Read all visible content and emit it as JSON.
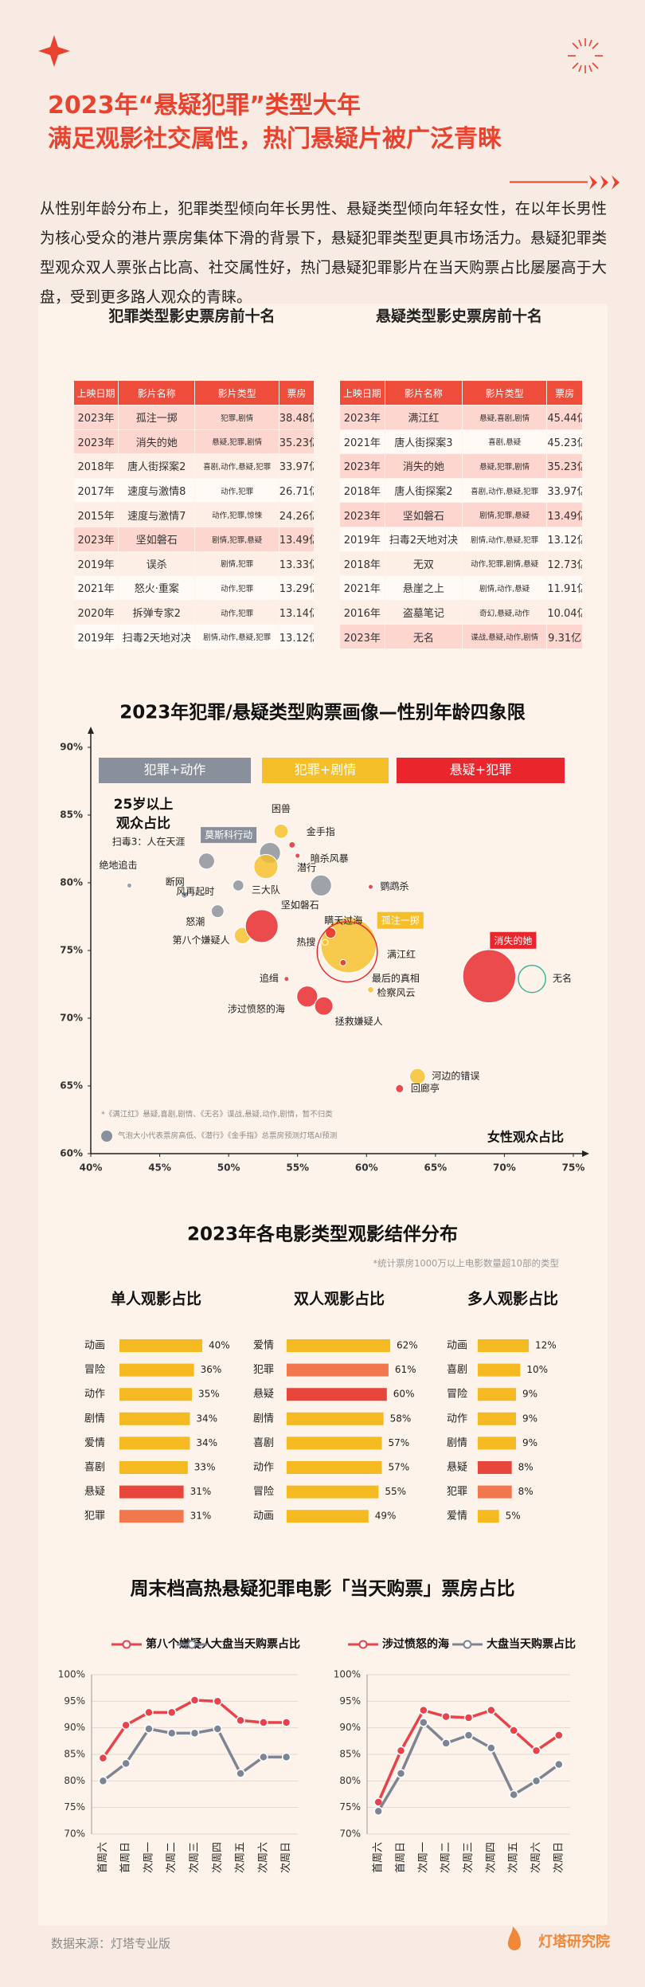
{
  "header": {
    "title_lines": [
      "2023年“悬疑犯罪”类型大年",
      "满足观影社交属性，热门悬疑片被广泛青睐"
    ]
  },
  "intro": "从性别年龄分布上，犯罪类型倾向年长男性、悬疑类型倾向年轻女性，在以年长男性为核心受众的港片票房集体下滑的背景下，悬疑犯罪类型更具市场活力。悬疑犯罪类型观众双人票张占比高、社交属性好，热门悬疑犯罪影片在当天购票占比屡屡高于大盘，受到更多路人观众的青睐。",
  "tables": [
    {
      "title": "犯罪类型影史票房前十名",
      "header_color": "#ef4d3c",
      "highlight_color": "#fcd6cf",
      "highlight_rows": [
        0,
        1,
        5
      ],
      "columns": [
        "上映日期",
        "影片名称",
        "影片类型",
        "票房"
      ],
      "rows": [
        [
          "2023年",
          "孤注一掷",
          "犯罪,剧情",
          "38.48亿"
        ],
        [
          "2023年",
          "消失的她",
          "悬疑,犯罪,剧情",
          "35.23亿"
        ],
        [
          "2018年",
          "唐人街探案2",
          "喜剧,动作,悬疑,犯罪",
          "33.97亿"
        ],
        [
          "2017年",
          "速度与激情8",
          "动作,犯罪",
          "26.71亿"
        ],
        [
          "2015年",
          "速度与激情7",
          "动作,犯罪,惊悚",
          "24.26亿"
        ],
        [
          "2023年",
          "坚如磐石",
          "剧情,犯罪,悬疑",
          "13.49亿"
        ],
        [
          "2019年",
          "误杀",
          "剧情,犯罪",
          "13.33亿"
        ],
        [
          "2021年",
          "怒火·重案",
          "动作,犯罪",
          "13.29亿"
        ],
        [
          "2020年",
          "拆弹专家2",
          "动作,犯罪",
          "13.14亿"
        ],
        [
          "2019年",
          "扫毒2天地对决",
          "剧情,动作,悬疑,犯罪",
          "13.12亿"
        ]
      ]
    },
    {
      "title": "悬疑类型影史票房前十名",
      "header_color": "#ef4d3c",
      "highlight_color": "#fcd6cf",
      "highlight_rows": [
        0,
        2,
        4,
        9
      ],
      "columns": [
        "上映日期",
        "影片名称",
        "影片类型",
        "票房"
      ],
      "rows": [
        [
          "2023年",
          "满江红",
          "悬疑,喜剧,剧情",
          "45.44亿"
        ],
        [
          "2021年",
          "唐人街探案3",
          "喜剧,悬疑",
          "45.23亿"
        ],
        [
          "2023年",
          "消失的她",
          "悬疑,犯罪,剧情",
          "35.23亿"
        ],
        [
          "2018年",
          "唐人街探案2",
          "喜剧,动作,悬疑,犯罪",
          "33.97亿"
        ],
        [
          "2023年",
          "坚如磐石",
          "剧情,犯罪,悬疑",
          "13.49亿"
        ],
        [
          "2019年",
          "扫毒2天地对决",
          "剧情,动作,悬疑,犯罪",
          "13.12亿"
        ],
        [
          "2018年",
          "无双",
          "动作,犯罪,剧情,悬疑",
          "12.73亿"
        ],
        [
          "2021年",
          "悬崖之上",
          "剧情,动作,悬疑",
          "11.91亿"
        ],
        [
          "2016年",
          "盗墓笔记",
          "奇幻,悬疑,动作",
          "10.04亿"
        ],
        [
          "2023年",
          "无名",
          "谍战,悬疑,动作,剧情",
          "9.31亿"
        ]
      ]
    }
  ],
  "chart_data": [
    {
      "type": "scatter",
      "title": "2023年犯罪/悬疑类型购票画像—性别年龄四象限",
      "x_label": "女性观众占比",
      "y_label": [
        "25岁以上",
        "观众占比"
      ],
      "xlim": [
        40,
        75
      ],
      "xticks": [
        {
          "value": 40,
          "label": "40%"
        },
        {
          "value": 45,
          "label": "45%"
        },
        {
          "value": 50,
          "label": "50%"
        },
        {
          "value": 55,
          "label": "55%"
        },
        {
          "value": 60,
          "label": "60%"
        },
        {
          "value": 65,
          "label": "65%"
        },
        {
          "value": 70,
          "label": "70%"
        },
        {
          "value": 75,
          "label": "75%"
        }
      ],
      "ylim": [
        60,
        90
      ],
      "yticks": [
        {
          "value": 60,
          "label": "60%"
        },
        {
          "value": 65,
          "label": "65%"
        },
        {
          "value": 70,
          "label": "70%"
        },
        {
          "value": 75,
          "label": "75%"
        },
        {
          "value": 80,
          "label": "80%"
        },
        {
          "value": 85,
          "label": "85%"
        },
        {
          "value": 90,
          "label": "90%"
        }
      ],
      "series": [
        {
          "name": "犯罪+动作",
          "color": "#8a909b",
          "boxed": [
            1
          ],
          "labels": [
            "扫毒3：人在天涯",
            "莫斯科行动",
            "绝地追击",
            "断网",
            "风再起时",
            "怒潮",
            "潜行"
          ],
          "x": [
            48.4,
            53.0,
            42.8,
            46.8,
            50.7,
            49.2,
            56.7
          ],
          "values": [
            81.6,
            82.2,
            79.8,
            79.1,
            79.8,
            77.9,
            79.8
          ],
          "sizes": [
            3.2,
            5.5,
            0.3,
            0.5,
            1.5,
            2.0,
            5.5
          ]
        },
        {
          "name": "犯罪+剧情",
          "color": "#f5bf2a",
          "boxed": [
            3
          ],
          "labels": [
            "困兽",
            "三大队",
            "第八个嫌疑人",
            "孤注一掷",
            "检察风云",
            "河边的错误",
            "热搜"
          ],
          "x": [
            53.8,
            52.7,
            51.0,
            58.7,
            60.3,
            63.7,
            57.0
          ],
          "values": [
            83.8,
            81.2,
            76.1,
            75.4,
            72.1,
            65.7,
            75.6
          ],
          "sizes": [
            2.5,
            7.3,
            3.3,
            38.48,
            0.5,
            3.1,
            0.4
          ]
        },
        {
          "name": "悬疑+犯罪",
          "color": "#e8262b",
          "boxed": [
            9
          ],
          "labels": [
            "坚如磐石",
            "金手指",
            "暗杀风暴",
            "鹦鹉杀",
            "瞒天过海",
            "最后的真相",
            "追缉",
            "涉过愤怒的海",
            "拯救嫌疑人",
            "消失的她",
            "回廊亭"
          ],
          "x": [
            52.4,
            54.6,
            55.0,
            60.3,
            57.4,
            58.3,
            54.2,
            55.7,
            56.9,
            68.9,
            62.4
          ],
          "values": [
            76.8,
            82.8,
            82.0,
            79.7,
            76.3,
            74.1,
            72.9,
            71.6,
            70.9,
            73.1,
            64.8
          ],
          "sizes": [
            13.49,
            0.5,
            0.3,
            0.2,
            1.4,
            0.5,
            0.2,
            5.5,
            4.2,
            35.23,
            0.8
          ]
        }
      ],
      "extra_points": {
        "labels": [
          "满江红",
          "无名"
        ],
        "x": [
          58.6,
          72.0
        ],
        "values": [
          74.9,
          72.9
        ],
        "sizes": [
          45.44,
          9.31
        ],
        "colors": [
          "#e8262b",
          "#3fb59b"
        ]
      },
      "notes": [
        "*《满江红》悬疑,喜剧,剧情、《无名》谍战,悬疑,动作,剧情，暂不归类",
        "气泡大小代表票房高低、《潜行》《金手指》总票房预测灯塔AI预测"
      ]
    },
    {
      "type": "bar",
      "title": "2023年各电影类型观影结伴分布",
      "note": "*统计票房1000万以上电影数量超10部的类型",
      "panels": [
        {
          "title": "单人观影占比",
          "categories": [
            "动画",
            "冒险",
            "动作",
            "剧情",
            "爱情",
            "喜剧",
            "悬疑",
            "犯罪"
          ],
          "values": [
            40,
            36,
            35,
            34,
            34,
            33,
            31,
            31
          ],
          "value_labels": [
            "40%",
            "36%",
            "35%",
            "34%",
            "34%",
            "33%",
            "31%",
            "31%"
          ],
          "colors": [
            "#f5b921",
            "#f5b921",
            "#f5b921",
            "#f5b921",
            "#f5b921",
            "#f5b921",
            "#e8463b",
            "#f2774f"
          ]
        },
        {
          "title": "双人观影占比",
          "categories": [
            "爱情",
            "犯罪",
            "悬疑",
            "剧情",
            "喜剧",
            "动作",
            "冒险",
            "动画"
          ],
          "values": [
            62,
            61,
            60,
            58,
            57,
            57,
            55,
            49
          ],
          "value_labels": [
            "62%",
            "61%",
            "60%",
            "58%",
            "57%",
            "57%",
            "55%",
            "49%"
          ],
          "colors": [
            "#f5b921",
            "#f2774f",
            "#e8463b",
            "#f5b921",
            "#f5b921",
            "#f5b921",
            "#f5b921",
            "#f5b921"
          ]
        },
        {
          "title": "多人观影占比",
          "categories": [
            "动画",
            "喜剧",
            "冒险",
            "动作",
            "剧情",
            "悬疑",
            "犯罪",
            "爱情"
          ],
          "values": [
            12,
            10,
            9,
            9,
            9,
            8,
            8,
            5
          ],
          "value_labels": [
            "12%",
            "10%",
            "9%",
            "9%",
            "9%",
            "8%",
            "8%",
            "5%"
          ],
          "colors": [
            "#f5b921",
            "#f5b921",
            "#f5b921",
            "#f5b921",
            "#f5b921",
            "#e8463b",
            "#f2774f",
            "#f5b921"
          ]
        }
      ]
    },
    {
      "type": "line",
      "title": "周末档高热悬疑犯罪电影「当天购票」票房占比",
      "categories": [
        "首周六",
        "首周日",
        "次周一",
        "次周二",
        "次周三",
        "次周四",
        "次周五",
        "次周六",
        "次周日"
      ],
      "ylim": [
        70,
        100
      ],
      "yticks": [
        {
          "value": 70,
          "label": "70%"
        },
        {
          "value": 75,
          "label": "75%"
        },
        {
          "value": 80,
          "label": "80%"
        },
        {
          "value": 85,
          "label": "85%"
        },
        {
          "value": 90,
          "label": "90%"
        },
        {
          "value": 95,
          "label": "95%"
        },
        {
          "value": 100,
          "label": "100%"
        }
      ],
      "grid": true,
      "panels": [
        {
          "series": [
            {
              "name": "第八个嫌疑人",
              "color": "#e8424a",
              "values": [
                84.3,
                90.5,
                92.9,
                92.9,
                95.2,
                95.0,
                91.4,
                91.0,
                91.0
              ]
            },
            {
              "name": "大盘当天购票占比",
              "color": "#7d8594",
              "values": [
                80.0,
                83.3,
                89.8,
                89.0,
                89.0,
                89.8,
                81.4,
                84.5,
                84.5
              ]
            }
          ]
        },
        {
          "series": [
            {
              "name": "涉过愤怒的海",
              "color": "#e8424a",
              "values": [
                76.0,
                85.7,
                93.3,
                92.1,
                91.9,
                93.3,
                89.5,
                85.7,
                88.6
              ]
            },
            {
              "name": "大盘当天购票占比",
              "color": "#7d8594",
              "values": [
                74.3,
                81.4,
                91.0,
                87.1,
                88.6,
                86.2,
                77.4,
                80.0,
                83.1
              ]
            }
          ]
        }
      ]
    }
  ],
  "footer": {
    "source": "数据来源：灯塔专业版",
    "brand": "灯塔研究院"
  }
}
